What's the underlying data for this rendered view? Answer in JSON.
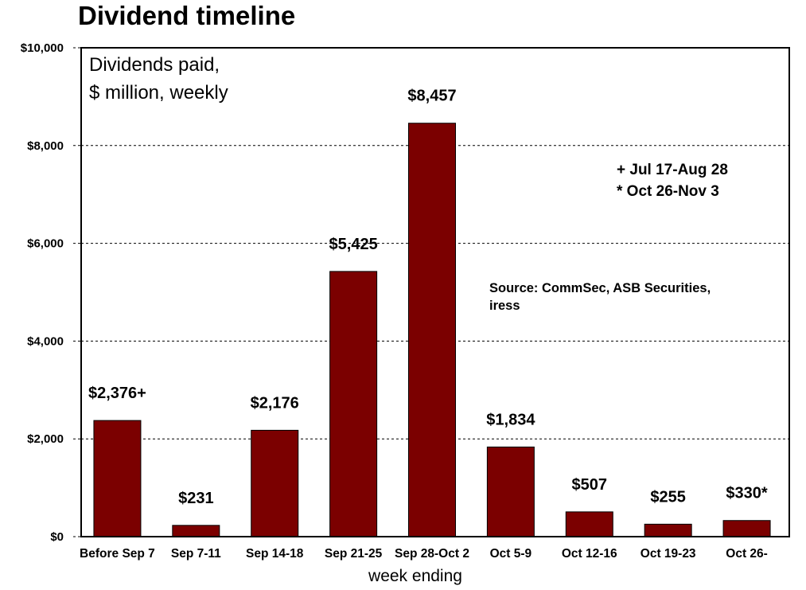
{
  "chart_data": {
    "type": "bar",
    "title": "Dividend timeline",
    "subtitle_lines": [
      "Dividends paid,",
      "$ million, weekly"
    ],
    "xlabel": "week ending",
    "ylabel": "",
    "ylim": [
      0,
      10000
    ],
    "yticks": [
      0,
      2000,
      4000,
      6000,
      8000,
      10000
    ],
    "ytick_labels": [
      "$0",
      "$2,000",
      "$4,000",
      "$6,000",
      "$8,000",
      "$10,000"
    ],
    "grid": true,
    "bar_color": "#7B0000",
    "categories": [
      "Before Sep 7",
      "Sep 7-11",
      "Sep 14-18",
      "Sep 21-25",
      "Sep 28-Oct 2",
      "Oct 5-9",
      "Oct 12-16",
      "Oct 19-23",
      "Oct 26-"
    ],
    "values": [
      2376,
      231,
      2176,
      5425,
      8457,
      1834,
      507,
      255,
      330
    ],
    "data_labels": [
      "$2,376+",
      "$231",
      "$2,176",
      "$5,425",
      "$8,457",
      "$1,834",
      "$507",
      "$255",
      "$330*"
    ],
    "annotations": {
      "footnotes": [
        "+ Jul 17-Aug 28",
        "* Oct 26-Nov 3"
      ],
      "source_lines": [
        "Source: CommSec, ASB Securities,",
        "iress"
      ]
    }
  }
}
